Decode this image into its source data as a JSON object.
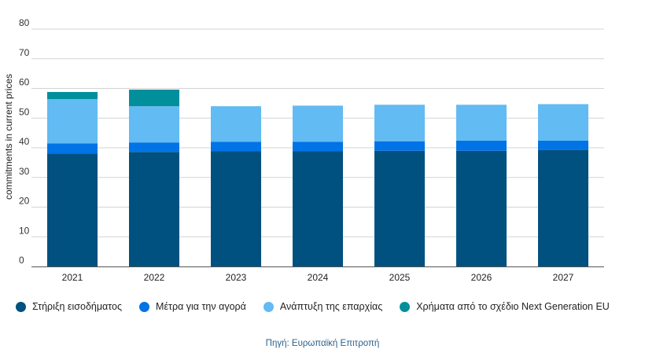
{
  "chart_data": {
    "type": "bar",
    "stacked": true,
    "categories": [
      "2021",
      "2022",
      "2023",
      "2024",
      "2025",
      "2026",
      "2027"
    ],
    "ylabel": "commitments in current prices",
    "ylim": [
      0,
      80
    ],
    "yticks": [
      0,
      10,
      20,
      30,
      40,
      50,
      60,
      70,
      80
    ],
    "grid": true,
    "legend_position": "bottom",
    "series": [
      {
        "name": "Στήριξη εισοδήματος",
        "color": "#00517f",
        "values": [
          38.0,
          38.6,
          38.8,
          38.8,
          39.0,
          39.0,
          39.3
        ]
      },
      {
        "name": "Μέτρα για την αγορά",
        "color": "#0073e6",
        "values": [
          3.5,
          3.2,
          3.2,
          3.2,
          3.2,
          3.4,
          3.1
        ]
      },
      {
        "name": "Ανάπτυξη της επαρχίας",
        "color": "#62bbf2",
        "values": [
          14.9,
          12.2,
          12.0,
          12.2,
          12.3,
          12.1,
          12.3
        ]
      },
      {
        "name": "Χρήματα από το σχέδιο Next Generation EU",
        "color": "#008f9b",
        "values": [
          2.4,
          5.6,
          0,
          0,
          0,
          0,
          0
        ]
      }
    ]
  },
  "source": "Πηγή: Ευρωπαϊκή Επιτροπή"
}
